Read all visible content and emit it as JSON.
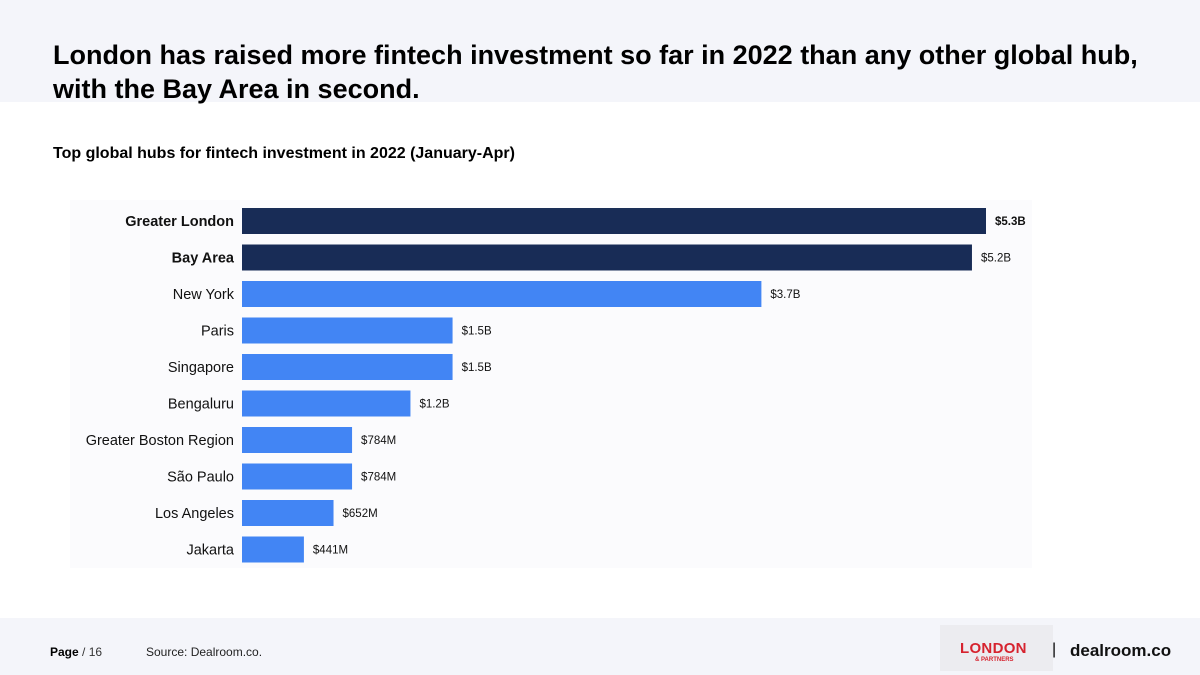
{
  "headline": "London has raised more fintech investment so far in 2022 than any other global hub, with the Bay Area in second.",
  "chart_data": {
    "type": "bar",
    "orientation": "horizontal",
    "title": "Top global hubs for fintech investment in 2022 (January-Apr)",
    "categories": [
      "Greater London",
      "Bay Area",
      "New York",
      "Paris",
      "Singapore",
      "Bengaluru",
      "Greater Boston Region",
      "São Paulo",
      "Los Angeles",
      "Jakarta"
    ],
    "values": [
      5300,
      5200,
      3700,
      1500,
      1500,
      1200,
      784,
      784,
      652,
      441
    ],
    "units": "$M",
    "labels": [
      "$5.3B",
      "$5.2B",
      "$3.7B",
      "$1.5B",
      "$1.5B",
      "$1.2B",
      "$784M",
      "$784M",
      "$652M",
      "$441M"
    ],
    "highlight": [
      true,
      true,
      false,
      false,
      false,
      false,
      false,
      false,
      false,
      false
    ],
    "xlim": [
      0,
      5300
    ],
    "colors": {
      "highlight": "#182c56",
      "default": "#4285f4"
    }
  },
  "footer": {
    "page_label": "Page",
    "page_total": "/ 16",
    "source": "Source: Dealroom.co.",
    "logo_london": "LONDON",
    "logo_partners": "& PARTNERS",
    "separator": "|",
    "logo_dealroom": "dealroom.co"
  }
}
